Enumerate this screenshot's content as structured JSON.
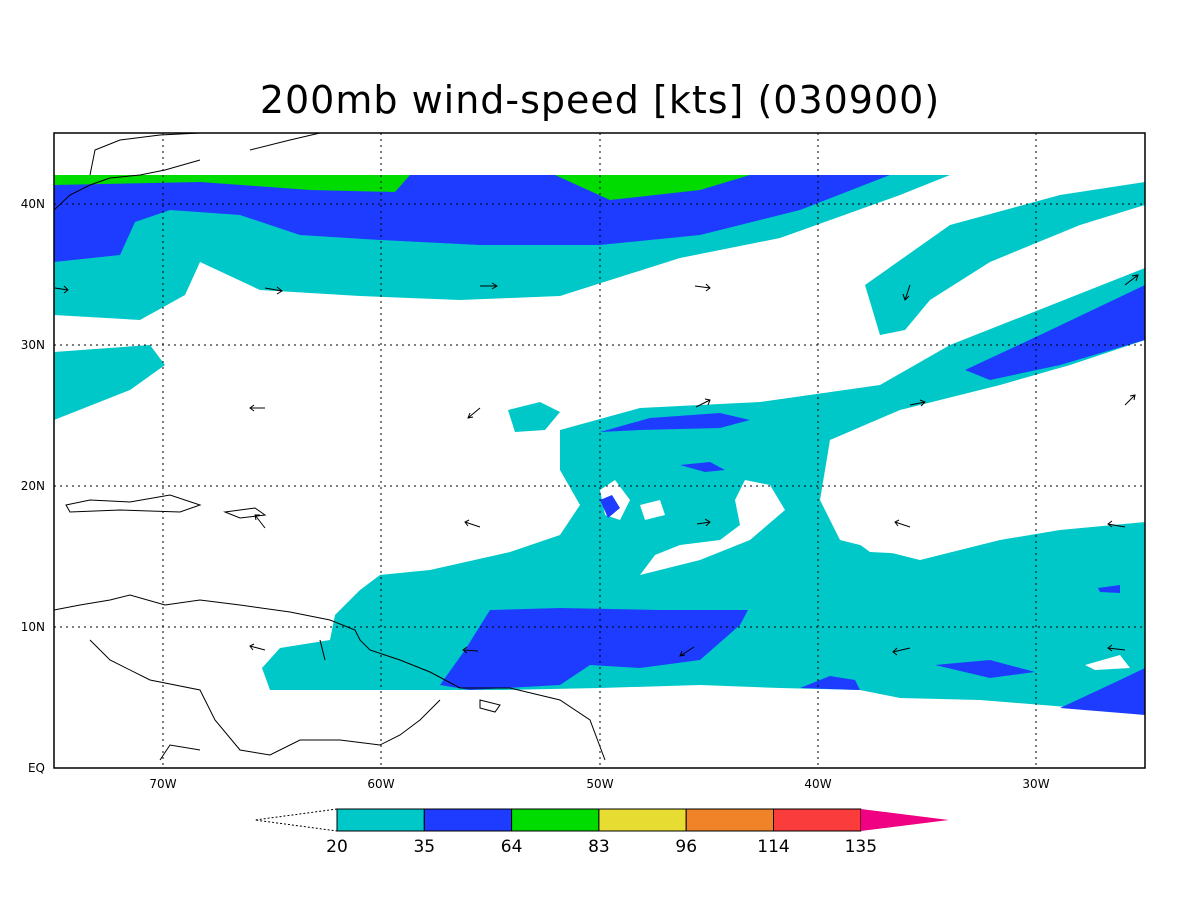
{
  "title": "200mb wind-speed [kts] (030900)",
  "map": {
    "lon_range": [
      -75,
      -25
    ],
    "lat_range": [
      0,
      45
    ],
    "lon_ticks": [
      {
        "lon": -70,
        "label": "70W"
      },
      {
        "lon": -60,
        "label": "60W"
      },
      {
        "lon": -50,
        "label": "50W"
      },
      {
        "lon": -40,
        "label": "40W"
      },
      {
        "lon": -30,
        "label": "30W"
      }
    ],
    "lat_ticks": [
      {
        "lat": 0,
        "label": "EQ"
      },
      {
        "lat": 10,
        "label": "10N"
      },
      {
        "lat": 20,
        "label": "20N"
      },
      {
        "lat": 30,
        "label": "30N"
      },
      {
        "lat": 40,
        "label": "40N"
      }
    ],
    "grid": "dotted"
  },
  "colorbar": {
    "levels": [
      "20",
      "35",
      "64",
      "83",
      "96",
      "114",
      "135"
    ],
    "colors": [
      "#00c8c8",
      "#1e3cff",
      "#00dc00",
      "#e6dc32",
      "#f08228",
      "#fa3c3c",
      "#f00082"
    ]
  }
}
